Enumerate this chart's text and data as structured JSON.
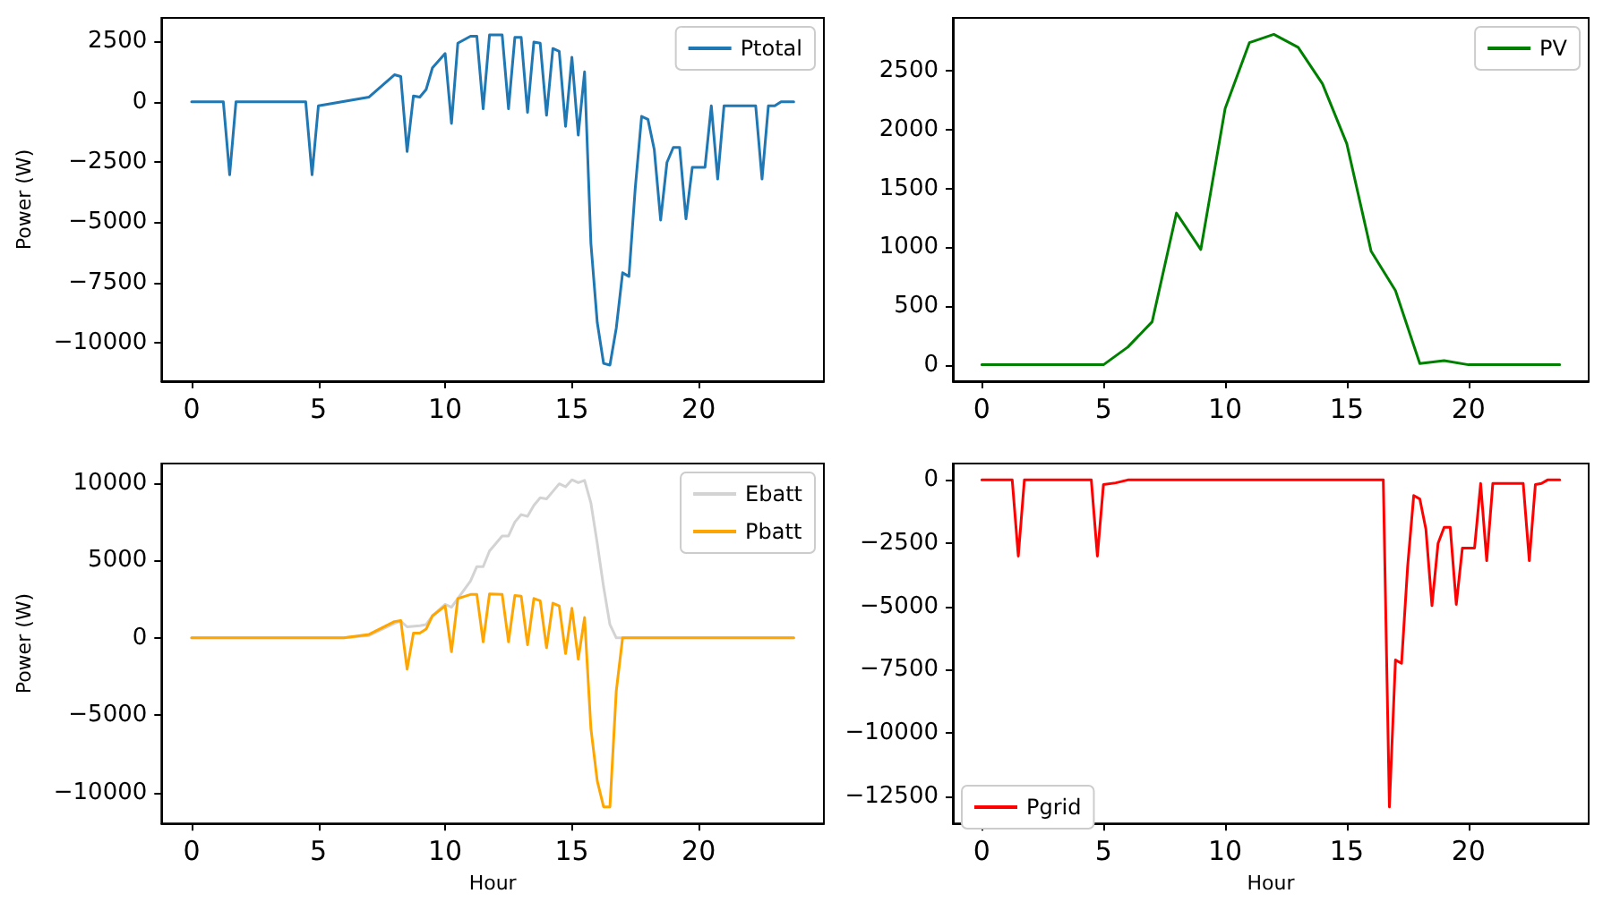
{
  "chart_data": [
    {
      "type": "line",
      "ylabel": "Power (W)",
      "xlim": [
        -1.19,
        24.94
      ],
      "xticks": [
        0,
        5,
        10,
        15,
        20
      ],
      "ylim": [
        -11600,
        3480
      ],
      "yticks": [
        {
          "value": -10000,
          "label": "−10000"
        },
        {
          "value": -7500,
          "label": "−7500"
        },
        {
          "value": -5000,
          "label": "−5000"
        },
        {
          "value": -2500,
          "label": "−2500"
        },
        0,
        2500
      ],
      "grid": false,
      "legend": "top right",
      "marker": "none",
      "line_style": "solid",
      "series": [
        {
          "name": "Ptotal",
          "color": "#1f77b4",
          "x": [
            0,
            1.25,
            1.5,
            1.75,
            4.5,
            4.75,
            5,
            7,
            8,
            8.25,
            8.5,
            8.75,
            9,
            9.25,
            9.5,
            10,
            10.25,
            10.5,
            11,
            11.25,
            11.5,
            11.75,
            12.25,
            12.5,
            12.75,
            13,
            13.25,
            13.5,
            13.75,
            14,
            14.25,
            14.5,
            14.75,
            15,
            15.25,
            15.5,
            15.75,
            16,
            16.25,
            16.5,
            16.75,
            17,
            17.25,
            17.5,
            17.75,
            18,
            18.25,
            18.5,
            18.75,
            19,
            19.25,
            19.5,
            19.75,
            20.25,
            20.5,
            20.75,
            21,
            22.25,
            22.5,
            22.75,
            23,
            23.25,
            23.75
          ],
          "values": [
            0,
            0,
            -3030,
            0,
            0,
            -3030,
            -170,
            195,
            1120,
            1045,
            -2065,
            243,
            195,
            510,
            1410,
            2000,
            -900,
            2430,
            2720,
            2720,
            -290,
            2770,
            2770,
            -290,
            2670,
            2670,
            -440,
            2480,
            2430,
            -560,
            2210,
            2090,
            -1020,
            1850,
            -1385,
            1240,
            -5880,
            -9160,
            -10860,
            -10930,
            -9400,
            -7100,
            -7250,
            -3570,
            -610,
            -730,
            -1990,
            -4910,
            -2520,
            -1895,
            -1895,
            -4860,
            -2720,
            -2720,
            -170,
            -3210,
            -170,
            -170,
            -3210,
            -170,
            -170,
            0,
            0
          ]
        }
      ]
    },
    {
      "type": "line",
      "xlim": [
        -1.19,
        24.94
      ],
      "xticks": [
        0,
        5,
        10,
        15,
        20
      ],
      "ylim": [
        -140,
        2950
      ],
      "yticks": [
        0,
        500,
        1000,
        1500,
        2000,
        2500
      ],
      "grid": false,
      "legend": "top right",
      "marker": "none",
      "line_style": "solid",
      "series": [
        {
          "name": "PV",
          "color": "#008000",
          "x": [
            0,
            1,
            2,
            3,
            4,
            5,
            6,
            7,
            8,
            9,
            10,
            11,
            12,
            13,
            14,
            15,
            16,
            17,
            18,
            19,
            20,
            21,
            22,
            23,
            23.75
          ],
          "values": [
            0,
            0,
            0,
            0,
            0,
            0,
            150,
            365,
            1290,
            980,
            2180,
            2740,
            2810,
            2700,
            2390,
            1880,
            965,
            630,
            10,
            35,
            0,
            0,
            0,
            0,
            0
          ]
        }
      ]
    },
    {
      "type": "line",
      "ylabel": "Power (W)",
      "xlabel": "Hour",
      "xlim": [
        -1.19,
        24.94
      ],
      "xticks": [
        0,
        5,
        10,
        15,
        20
      ],
      "ylim": [
        -11990,
        11260
      ],
      "yticks": [
        {
          "value": -10000,
          "label": "−10000"
        },
        {
          "value": -5000,
          "label": "−5000"
        },
        0,
        5000,
        10000
      ],
      "grid": false,
      "legend": "top right",
      "marker": "none",
      "line_style": "solid",
      "series": [
        {
          "name": "Ebatt",
          "color": "#d3d3d3",
          "x": [
            0,
            6,
            7,
            8,
            8.25,
            8.5,
            9,
            9.25,
            9.5,
            10,
            10.25,
            10.5,
            11,
            11.25,
            11.5,
            11.75,
            12.25,
            12.5,
            12.75,
            13,
            13.25,
            13.5,
            13.75,
            14,
            14.25,
            14.5,
            14.75,
            15,
            15.25,
            15.5,
            15.75,
            16,
            16.25,
            16.5,
            16.75,
            23.75
          ],
          "values": [
            0,
            0,
            150,
            935,
            1080,
            710,
            785,
            860,
            1420,
            2170,
            1980,
            2540,
            3660,
            4600,
            4600,
            5610,
            6580,
            6580,
            7480,
            7960,
            7850,
            8560,
            9050,
            8980,
            9460,
            9950,
            9760,
            10210,
            10020,
            10170,
            8710,
            6100,
            3290,
            860,
            0,
            0
          ]
        },
        {
          "name": "Pbatt",
          "color": "#ffa500",
          "x": [
            0,
            6,
            7,
            8,
            8.25,
            8.5,
            8.75,
            9,
            9.25,
            9.5,
            10,
            10.25,
            10.5,
            11,
            11.25,
            11.5,
            11.75,
            12.25,
            12.5,
            12.75,
            13,
            13.25,
            13.5,
            13.75,
            14,
            14.25,
            14.5,
            14.75,
            15,
            15.25,
            15.5,
            15.75,
            16,
            16.25,
            16.5,
            16.75,
            17,
            23.75
          ],
          "values": [
            0,
            0,
            225,
            1050,
            1120,
            -2020,
            300,
            300,
            560,
            1420,
            2060,
            -900,
            2540,
            2800,
            2800,
            -260,
            2840,
            2800,
            -260,
            2730,
            2690,
            -450,
            2540,
            2390,
            -640,
            2240,
            2060,
            -1010,
            1910,
            -1380,
            1310,
            -5870,
            -9240,
            -10920,
            -10920,
            -3440,
            0,
            0
          ]
        }
      ]
    },
    {
      "type": "line",
      "xlabel": "Hour",
      "xlim": [
        -1.19,
        24.94
      ],
      "xticks": [
        0,
        5,
        10,
        15,
        20
      ],
      "ylim": [
        -13580,
        650
      ],
      "yticks": [
        {
          "value": -12500,
          "label": "−12500"
        },
        {
          "value": -10000,
          "label": "−10000"
        },
        {
          "value": -7500,
          "label": "−7500"
        },
        {
          "value": -5000,
          "label": "−5000"
        },
        {
          "value": -2500,
          "label": "−2500"
        },
        0
      ],
      "grid": false,
      "legend": "bottom left",
      "marker": "none",
      "line_style": "solid",
      "series": [
        {
          "name": "Pgrid",
          "color": "#ff0000",
          "x": [
            0,
            1.25,
            1.5,
            1.75,
            4.5,
            4.75,
            5,
            5.5,
            6,
            16.5,
            16.75,
            17,
            17.25,
            17.5,
            17.75,
            18,
            18.25,
            18.5,
            18.75,
            19,
            19.25,
            19.5,
            19.75,
            20.25,
            20.5,
            20.75,
            21,
            22.25,
            22.5,
            22.75,
            23,
            23.25,
            23.75
          ],
          "values": [
            0,
            0,
            -3010,
            0,
            0,
            -3010,
            -180,
            -115,
            0,
            0,
            -12930,
            -7120,
            -7250,
            -3420,
            -615,
            -750,
            -1940,
            -4970,
            -2510,
            -1870,
            -1870,
            -4920,
            -2690,
            -2690,
            -140,
            -3190,
            -140,
            -140,
            -3190,
            -180,
            -140,
            0,
            0
          ]
        }
      ]
    }
  ]
}
